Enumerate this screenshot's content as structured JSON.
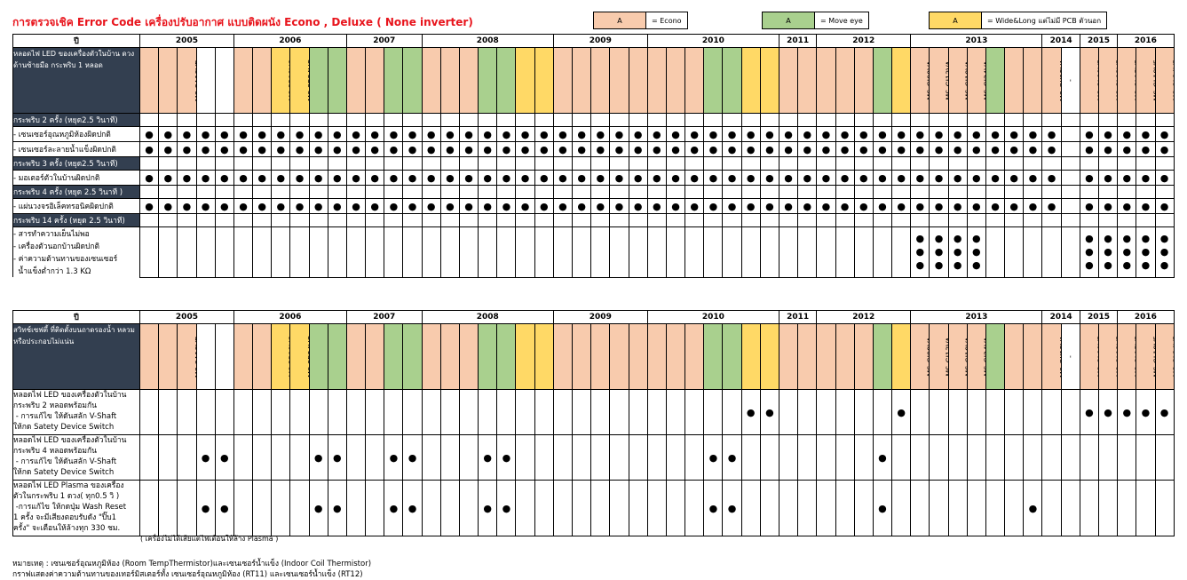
{
  "title": "การตรวจเชิค Error Code เครื่องปรับอากาศ แบบติดผนัง Econo , Deluxe ( None inverter)",
  "legend": [
    {
      "swatch": "A",
      "label": "= Econo",
      "color": "#f8cbad"
    },
    {
      "swatch": "A",
      "label": "= Move eye",
      "color": "#a9d08e"
    },
    {
      "swatch": "A",
      "label": "= Wide&Long แต่ไม่มี PCB ตัวนอก",
      "color": "#ffd966"
    }
  ],
  "year_col_label": "ปี",
  "years": [
    {
      "label": "2005",
      "span": 5
    },
    {
      "label": "2006",
      "span": 6
    },
    {
      "label": "2007",
      "span": 4
    },
    {
      "label": "2008",
      "span": 7
    },
    {
      "label": "2009",
      "span": 5
    },
    {
      "label": "2010",
      "span": 7
    },
    {
      "label": "2011",
      "span": 2
    },
    {
      "label": "2012",
      "span": 5
    },
    {
      "label": "2013",
      "span": 7
    },
    {
      "label": "2014",
      "span": 2
    },
    {
      "label": "2015",
      "span": 2
    },
    {
      "label": "2016",
      "span": 5
    }
  ],
  "table1": {
    "header_label": "หลอดไฟ LED ของเครื่องตัวในบ้าน ดวงด้านซ้ายมือ กระพริบ 1 หลอด",
    "models": [
      {
        "name": "MS-SGA09VD",
        "c": "e"
      },
      {
        "name": "MS-SGA13VD",
        "c": "e"
      },
      {
        "name": "MS-SA18VD",
        "c": "e"
      },
      {
        "name": "MS-SFA09VC",
        "c": ""
      },
      {
        "name": "MS-SFA13VC",
        "c": ""
      },
      {
        "name": "MS-SGB09VD",
        "c": "e"
      },
      {
        "name": "MS-SGB13VC",
        "c": "e"
      },
      {
        "name": "MS-PB18VC",
        "c": "w"
      },
      {
        "name": "MS-SB24VC",
        "c": "w"
      },
      {
        "name": "MS-PFB09VC",
        "c": "m"
      },
      {
        "name": "MS-PFB13VC",
        "c": "m"
      },
      {
        "name": "MS-PGC09VC",
        "c": "e"
      },
      {
        "name": "MS-PGC13VC",
        "c": "e"
      },
      {
        "name": "MS-PFC09VC",
        "c": "m"
      },
      {
        "name": "MS-PFC13VC",
        "c": "m"
      },
      {
        "name": "MS-SGD09VC",
        "c": "e"
      },
      {
        "name": "MS-SGD13VC",
        "c": "e"
      },
      {
        "name": "MS-SGD18VC",
        "c": "e"
      },
      {
        "name": "MS-SFD09VC",
        "c": "m"
      },
      {
        "name": "MS-SFD13VC",
        "c": "m"
      },
      {
        "name": "MS-SFD18VC",
        "c": "w"
      },
      {
        "name": "MS-SD24VC",
        "c": "w"
      },
      {
        "name": "MS-SGE09VC",
        "c": "e"
      },
      {
        "name": "MS-SGE13VC",
        "c": "e"
      },
      {
        "name": "MS-SGE18VC",
        "c": "e"
      },
      {
        "name": "MS-SGE24VC",
        "c": "e"
      },
      {
        "name": "MS-SFE24VC",
        "c": "e"
      },
      {
        "name": "MS-SGF09VC",
        "c": "e"
      },
      {
        "name": "MS-SGF13VC",
        "c": "e"
      },
      {
        "name": "MS-SGF18VC",
        "c": "e"
      },
      {
        "name": "MS-SFF09VC",
        "c": "m"
      },
      {
        "name": "MS-SFF13VC",
        "c": "m"
      },
      {
        "name": "MS-SFF18VC",
        "c": "w"
      },
      {
        "name": "MS-SFF24VC",
        "c": "w"
      },
      {
        "name": "MS-SGG09VC",
        "c": "e"
      },
      {
        "name": "MS-SGG13VC",
        "c": "e"
      },
      {
        "name": "MS-SGH09VC",
        "c": "e"
      },
      {
        "name": "MS-SGH13VC",
        "c": "e"
      },
      {
        "name": "MS-SGH18VC",
        "c": "e"
      },
      {
        "name": "MS-SFH13VC",
        "c": "m"
      },
      {
        "name": "MS-SFH18VC",
        "c": "w"
      },
      {
        "name": "MS-GJ09VA",
        "c": "e"
      },
      {
        "name": "MS-GJ13VA",
        "c": "e"
      },
      {
        "name": "MS-GJ18VA",
        "c": "e"
      },
      {
        "name": "MS-GJ24VA",
        "c": "e"
      },
      {
        "name": "MS-FH13VC",
        "c": "m"
      },
      {
        "name": "MS-GK09VA",
        "c": "e"
      },
      {
        "name": "MS-GK13VA",
        "c": "e"
      },
      {
        "name": "MS-GK15VA",
        "c": "e"
      },
      {
        "name": "-",
        "c": ""
      },
      {
        "name": "MS-GL09VF",
        "c": "e"
      },
      {
        "name": "MS-GL13VF",
        "c": "e"
      },
      {
        "name": "MS-GL15VF",
        "c": "e"
      },
      {
        "name": "MS-GL18VF",
        "c": "e"
      },
      {
        "name": "MS-GL24VF",
        "c": "e"
      }
    ],
    "sections": [
      {
        "title": "กระพริบ 2  ครั้ง (หยุด2.5 วินาที)",
        "rows": [
          {
            "label": "- เซนเซอร์อุณหภูมิห้องผิดปกติ",
            "marks": [
              1,
              1,
              1,
              1,
              1,
              1,
              1,
              1,
              1,
              1,
              1,
              1,
              1,
              1,
              1,
              1,
              1,
              1,
              1,
              1,
              1,
              1,
              1,
              1,
              1,
              1,
              1,
              1,
              1,
              1,
              1,
              1,
              1,
              1,
              1,
              1,
              1,
              1,
              1,
              1,
              1,
              1,
              1,
              1,
              1,
              1,
              1,
              1,
              1,
              0,
              1,
              1,
              1,
              1,
              1
            ]
          },
          {
            "label": "- เซนเซอร์ละลายน้ำแข็งผิดปกติ",
            "marks": [
              1,
              1,
              1,
              1,
              1,
              1,
              1,
              1,
              1,
              1,
              1,
              1,
              1,
              1,
              1,
              1,
              1,
              1,
              1,
              1,
              1,
              1,
              1,
              1,
              1,
              1,
              1,
              1,
              1,
              1,
              1,
              1,
              1,
              1,
              1,
              1,
              1,
              1,
              1,
              1,
              1,
              1,
              1,
              1,
              1,
              1,
              1,
              1,
              1,
              0,
              1,
              1,
              1,
              1,
              1
            ]
          }
        ]
      },
      {
        "title": "กระพริบ 3  ครั้ง (หยุด2.5 วินาที)",
        "rows": [
          {
            "label": "- มอเตอร์ตัวในบ้านผิดปกติ",
            "marks": [
              1,
              1,
              1,
              1,
              1,
              1,
              1,
              1,
              1,
              1,
              1,
              1,
              1,
              1,
              1,
              1,
              1,
              1,
              1,
              1,
              1,
              1,
              1,
              1,
              1,
              1,
              1,
              1,
              1,
              1,
              1,
              1,
              1,
              1,
              1,
              1,
              1,
              1,
              1,
              1,
              1,
              1,
              1,
              1,
              1,
              1,
              1,
              1,
              1,
              0,
              1,
              1,
              1,
              1,
              1
            ]
          }
        ]
      },
      {
        "title": "กระพริบ 4  ครั้ง  (หยุด 2.5 วินาที )",
        "rows": [
          {
            "label": "- แผ่นวงจรอิเล็คทรอนิคผิดปกติ",
            "marks": [
              1,
              1,
              1,
              1,
              1,
              1,
              1,
              1,
              1,
              1,
              1,
              1,
              1,
              1,
              1,
              1,
              1,
              1,
              1,
              1,
              1,
              1,
              1,
              1,
              1,
              1,
              1,
              1,
              1,
              1,
              1,
              1,
              1,
              1,
              1,
              1,
              1,
              1,
              1,
              1,
              1,
              1,
              1,
              1,
              1,
              1,
              1,
              1,
              1,
              0,
              1,
              1,
              1,
              1,
              1
            ]
          }
        ]
      },
      {
        "title": "กระพริบ 14 ครั้ง (หยุด 2.5 วินาที)",
        "stacked": true,
        "rows": [
          {
            "label": "- สารทำความเย็นไม่พอ"
          },
          {
            "label": "- เครื่องตัวนอกบ้านผิดปกติ"
          },
          {
            "label": "- ค่าความต้านทานของเซนเซอร์"
          },
          {
            "label": "  น้ำแข็งต่ำกว่า 1.3 KΩ"
          }
        ],
        "marks": [
          0,
          0,
          0,
          0,
          0,
          0,
          0,
          0,
          0,
          0,
          0,
          0,
          0,
          0,
          0,
          0,
          0,
          0,
          0,
          0,
          0,
          0,
          0,
          0,
          0,
          0,
          0,
          0,
          0,
          0,
          0,
          0,
          0,
          0,
          0,
          0,
          0,
          0,
          0,
          0,
          0,
          1,
          1,
          1,
          1,
          0,
          0,
          0,
          0,
          0,
          1,
          1,
          1,
          1,
          1
        ],
        "dots": 3
      }
    ]
  },
  "table2": {
    "header_label": "สวิทช์เซฟตี้ ที่ติดตั้งบนถาดรองน้ำ หลวมหรือประกอบไม่แน่น",
    "models": [
      {
        "name": "MS-SGA09VD",
        "c": "e"
      },
      {
        "name": "MS-SGA13VD",
        "c": "e"
      },
      {
        "name": "MS-SA18VD",
        "c": "e"
      },
      {
        "name": "MS-SFA09VC",
        "c": ""
      },
      {
        "name": "MS-SFA13VC",
        "c": ""
      },
      {
        "name": "MS-SGB09VD",
        "c": "e"
      },
      {
        "name": "MS-SGB13VC",
        "c": "e"
      },
      {
        "name": "MS-PB18VC",
        "c": "w"
      },
      {
        "name": "MS-SB24VC",
        "c": "w"
      },
      {
        "name": "MS-PFB09VC",
        "c": "m"
      },
      {
        "name": "MS-PFB13VC",
        "c": "m"
      },
      {
        "name": "MS-PGC09VC",
        "c": "e"
      },
      {
        "name": "MS-PGC13VC",
        "c": "e"
      },
      {
        "name": "MS-PFC09VC",
        "c": "m"
      },
      {
        "name": "MS-PFC13VC",
        "c": "m"
      },
      {
        "name": "MS-SGD09VC",
        "c": "e"
      },
      {
        "name": "MS-SGD13VC",
        "c": "e"
      },
      {
        "name": "MS-SGD18VC",
        "c": "e"
      },
      {
        "name": "MS-SFD09VC",
        "c": "m"
      },
      {
        "name": "MS-SFD13VC",
        "c": "m"
      },
      {
        "name": "MS-SFD18VC",
        "c": "w"
      },
      {
        "name": "MS-SD24VC",
        "c": "w"
      },
      {
        "name": "MS-SGE09VC",
        "c": "e"
      },
      {
        "name": "MS-SGE13VC",
        "c": "e"
      },
      {
        "name": "MS-SGE18VC",
        "c": "e"
      },
      {
        "name": "MS-SGE24VC",
        "c": "e"
      },
      {
        "name": "MS-SFE24VC",
        "c": "e"
      },
      {
        "name": "MS-SGF09VC",
        "c": "e"
      },
      {
        "name": "MS-SGF13VC",
        "c": "e"
      },
      {
        "name": "MS-SGF18VC",
        "c": "e"
      },
      {
        "name": "MS-SFF09VC",
        "c": "m"
      },
      {
        "name": "MS-SFF13VC",
        "c": "m"
      },
      {
        "name": "MS-SFF18VC",
        "c": "w"
      },
      {
        "name": "MS-SFF24VC",
        "c": "w"
      },
      {
        "name": "MS-SGG09VC",
        "c": "e"
      },
      {
        "name": "MS-SGG13VC",
        "c": "e"
      },
      {
        "name": "MS-SGH09VC",
        "c": "e"
      },
      {
        "name": "MS-SGH13VC",
        "c": "e"
      },
      {
        "name": "MS-SGH18VC",
        "c": "e"
      },
      {
        "name": "MS-SFH13VC",
        "c": "m"
      },
      {
        "name": "MS-SFH18VC",
        "c": "w"
      },
      {
        "name": "MS-GJ09VA",
        "c": "e"
      },
      {
        "name": "MS-GJ13VA",
        "c": "e"
      },
      {
        "name": "MS-GJ18VA",
        "c": "e"
      },
      {
        "name": "MS-GJ24VA",
        "c": "e"
      },
      {
        "name": "MS-FH13VC",
        "c": "m"
      },
      {
        "name": "MS-GK09VA",
        "c": "e"
      },
      {
        "name": "MS-GK13VA",
        "c": "e"
      },
      {
        "name": "MS-GK15VA",
        "c": "e"
      },
      {
        "name": "-",
        "c": ""
      },
      {
        "name": "MS-GL09VF",
        "c": "e"
      },
      {
        "name": "MS-GL13VF",
        "c": "e"
      },
      {
        "name": "MS-GL15VF",
        "c": "e"
      },
      {
        "name": "MS-GL18VF",
        "c": "e"
      },
      {
        "name": "MS-GL24VF",
        "c": "e"
      }
    ],
    "rows": [
      {
        "desc": [
          "หลอดไฟ LED ของเครื่องตัวในบ้าน",
          "กระพริบ 2 หลอดพร้อมกัน",
          " - การแก้ไข ให้ดันสลัก V-Shaft",
          "ให้กด Satety Device Switch"
        ],
        "marks": [
          0,
          0,
          0,
          0,
          0,
          0,
          0,
          0,
          0,
          0,
          0,
          0,
          0,
          0,
          0,
          0,
          0,
          0,
          0,
          0,
          0,
          0,
          0,
          0,
          0,
          0,
          0,
          0,
          0,
          0,
          0,
          0,
          1,
          1,
          0,
          0,
          0,
          0,
          0,
          0,
          1,
          0,
          0,
          0,
          0,
          0,
          0,
          0,
          0,
          0,
          1,
          1,
          1,
          1,
          1
        ]
      },
      {
        "desc": [
          "หลอดไฟ LED ของเครื่องตัวในบ้าน",
          "กระพริบ 4 หลอดพร้อมกัน",
          " - การแก้ไข ให้ดันสลัก V-Shaft",
          "ให้กด Satety Device Switch"
        ],
        "marks": [
          0,
          0,
          0,
          1,
          1,
          0,
          0,
          0,
          0,
          1,
          1,
          0,
          0,
          1,
          1,
          0,
          0,
          0,
          1,
          1,
          0,
          0,
          0,
          0,
          0,
          0,
          0,
          0,
          0,
          0,
          1,
          1,
          0,
          0,
          0,
          0,
          0,
          0,
          0,
          1,
          0,
          0,
          0,
          0,
          0,
          0,
          0,
          0,
          0,
          0,
          0,
          0,
          0,
          0,
          0
        ]
      },
      {
        "desc": [
          "หลอดไฟ LED Plasma ของเครื่อง",
          "ตัวในกระพริบ 1 ดวง( ทุก0.5 วิ )",
          " -การแก้ไข ให้กดปุ่ม Wash Reset",
          "1 ครั้ง จะมีเสียงตอบรับดัง \"ปิ๊บ1",
          "ครั้ง\" จะเตือนให้ล้างทุก 330 ชม."
        ],
        "marks": [
          0,
          0,
          0,
          1,
          1,
          0,
          0,
          0,
          0,
          1,
          1,
          0,
          0,
          1,
          1,
          0,
          0,
          0,
          1,
          1,
          0,
          0,
          0,
          0,
          0,
          0,
          0,
          0,
          0,
          0,
          1,
          1,
          0,
          0,
          0,
          0,
          0,
          0,
          0,
          1,
          0,
          0,
          0,
          0,
          0,
          0,
          0,
          1,
          0,
          0,
          0,
          0,
          0,
          0,
          0
        ]
      }
    ],
    "footnote": "( เครื่องไม่ได้เสียแต่ไฟเตือนให้ล้าง Plasma )"
  },
  "notes": [
    "หมายเหตุ : เซนเซอร์อุณหภูมิห้อง (Room TempThermistor)และเซนเซอร์น้ำแข็ง (Indoor Coil Thermistor)",
    "กราฟแสดงค่าความต้านทานของเทอร์มิสเตอร์ทั้ง เซนเซอร์อุณหภูมิห้อง (RT11) และเซนเซอร์น้ำแข็ง (RT12)"
  ],
  "dot_char": "●"
}
